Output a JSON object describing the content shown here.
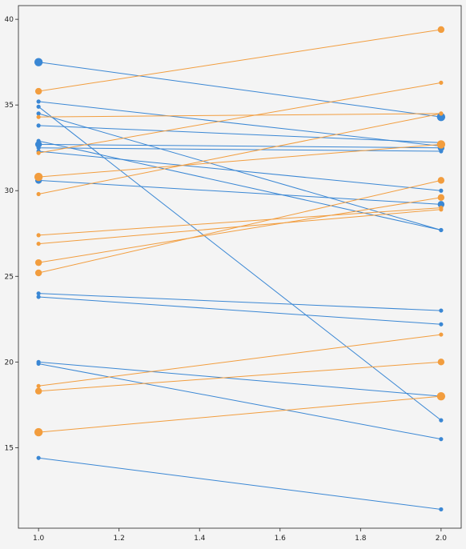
{
  "chart_data": {
    "type": "slope",
    "title": "",
    "xlabel": "",
    "ylabel": "",
    "x": [
      1.0,
      2.0
    ],
    "xlim": [
      0.95,
      2.05
    ],
    "ylim": [
      10.3,
      40.8
    ],
    "grid": false,
    "legend": false,
    "x_ticks": [
      1.0,
      1.2,
      1.4,
      1.6,
      1.8,
      2.0
    ],
    "x_tick_labels": [
      "1.0",
      "1.2",
      "1.4",
      "1.6",
      "1.8",
      "2.0"
    ],
    "y_ticks": [
      15,
      20,
      25,
      30,
      35,
      40
    ],
    "y_tick_labels": [
      "15",
      "20",
      "25",
      "30",
      "35",
      "40"
    ],
    "colors": {
      "decrease": "#3a87d4",
      "increase": "#f29d3e",
      "background": "#f4f4f4",
      "frame": "#222222"
    },
    "pairs": [
      {
        "start": 37.5,
        "end": 34.3,
        "trend": "decrease",
        "size": "large"
      },
      {
        "start": 35.2,
        "end": 32.6,
        "trend": "decrease",
        "size": "small"
      },
      {
        "start": 34.9,
        "end": 16.6,
        "trend": "decrease",
        "size": "small"
      },
      {
        "start": 34.5,
        "end": 27.7,
        "trend": "decrease",
        "size": "small"
      },
      {
        "start": 33.8,
        "end": 32.8,
        "trend": "decrease",
        "size": "small"
      },
      {
        "start": 32.9,
        "end": 27.7,
        "trend": "decrease",
        "size": "small"
      },
      {
        "start": 32.7,
        "end": 32.5,
        "trend": "decrease",
        "size": "medium"
      },
      {
        "start": 32.5,
        "end": 32.3,
        "trend": "decrease",
        "size": "small"
      },
      {
        "start": 32.3,
        "end": 30.0,
        "trend": "decrease",
        "size": "small"
      },
      {
        "start": 30.6,
        "end": 29.2,
        "trend": "decrease",
        "size": "medium"
      },
      {
        "start": 24.0,
        "end": 23.0,
        "trend": "decrease",
        "size": "small"
      },
      {
        "start": 23.8,
        "end": 22.2,
        "trend": "decrease",
        "size": "small"
      },
      {
        "start": 20.0,
        "end": 18.0,
        "trend": "decrease",
        "size": "small"
      },
      {
        "start": 19.9,
        "end": 15.5,
        "trend": "decrease",
        "size": "small"
      },
      {
        "start": 14.4,
        "end": 11.4,
        "trend": "decrease",
        "size": "small"
      },
      {
        "start": 35.8,
        "end": 39.4,
        "trend": "increase",
        "size": "medium"
      },
      {
        "start": 34.3,
        "end": 34.5,
        "trend": "increase",
        "size": "small"
      },
      {
        "start": 32.2,
        "end": 36.3,
        "trend": "increase",
        "size": "small"
      },
      {
        "start": 30.8,
        "end": 32.7,
        "trend": "increase",
        "size": "large"
      },
      {
        "start": 29.8,
        "end": 34.5,
        "trend": "increase",
        "size": "small"
      },
      {
        "start": 27.4,
        "end": 29.0,
        "trend": "increase",
        "size": "small"
      },
      {
        "start": 26.9,
        "end": 28.9,
        "trend": "increase",
        "size": "small"
      },
      {
        "start": 25.8,
        "end": 29.6,
        "trend": "increase",
        "size": "medium"
      },
      {
        "start": 25.2,
        "end": 30.6,
        "trend": "increase",
        "size": "medium"
      },
      {
        "start": 18.6,
        "end": 21.6,
        "trend": "increase",
        "size": "small"
      },
      {
        "start": 18.3,
        "end": 20.0,
        "trend": "increase",
        "size": "medium"
      },
      {
        "start": 15.9,
        "end": 18.0,
        "trend": "increase",
        "size": "large"
      }
    ]
  }
}
